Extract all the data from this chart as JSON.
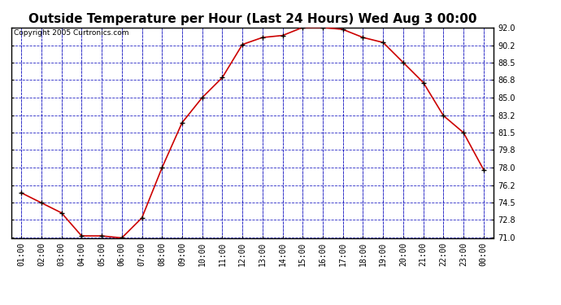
{
  "title": "Outside Temperature per Hour (Last 24 Hours) Wed Aug 3 00:00",
  "copyright": "Copyright 2005 Curtronics.com",
  "x_labels": [
    "01:00",
    "02:00",
    "03:00",
    "04:00",
    "05:00",
    "06:00",
    "07:00",
    "08:00",
    "09:00",
    "10:00",
    "11:00",
    "12:00",
    "13:00",
    "14:00",
    "15:00",
    "16:00",
    "17:00",
    "18:00",
    "19:00",
    "20:00",
    "21:00",
    "22:00",
    "23:00",
    "00:00"
  ],
  "temperatures": [
    75.5,
    74.5,
    73.5,
    71.2,
    71.2,
    71.0,
    73.0,
    78.0,
    82.5,
    85.0,
    87.0,
    90.3,
    91.0,
    91.2,
    92.0,
    92.0,
    91.8,
    91.0,
    90.5,
    88.5,
    86.5,
    83.2,
    81.5,
    77.8
  ],
  "line_color": "#cc0000",
  "marker_color": "#000000",
  "fig_bg_color": "#ffffff",
  "plot_bg_color": "#ffffff",
  "grid_color": "#0000bb",
  "border_color": "#000000",
  "title_fontsize": 11,
  "copyright_fontsize": 6.5,
  "tick_fontsize": 7,
  "ylim_min": 71.0,
  "ylim_max": 92.0,
  "yticks": [
    71.0,
    72.8,
    74.5,
    76.2,
    78.0,
    79.8,
    81.5,
    83.2,
    85.0,
    86.8,
    88.5,
    90.2,
    92.0
  ]
}
